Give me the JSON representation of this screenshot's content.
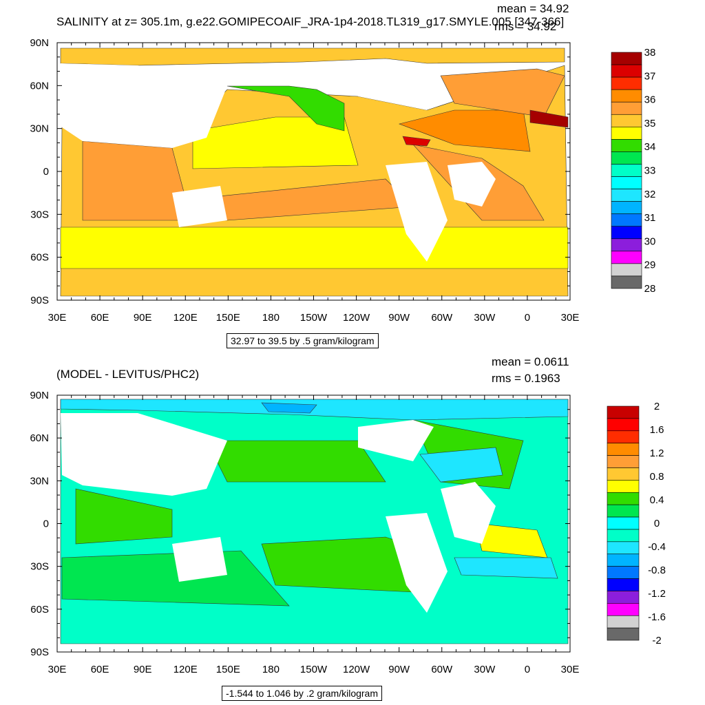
{
  "chart_data": [
    {
      "type": "heatmap",
      "title": "SALINITY at z= 305.1m, g.e22.GOMIPECOAIF_JRA-1p4-2018.TL319_g17.SMYLE.005 [347-366]",
      "stats": {
        "mean": "mean = 34.92",
        "rms": "rms = 34.92"
      },
      "x_ticks": [
        "30E",
        "60E",
        "90E",
        "120E",
        "150E",
        "180",
        "150W",
        "120W",
        "90W",
        "60W",
        "30W",
        "0",
        "30E"
      ],
      "y_ticks": [
        "90N",
        "60N",
        "30N",
        "0",
        "30S",
        "60S",
        "90S"
      ],
      "colorbar": {
        "labels": [
          "38",
          "37",
          "36",
          "35",
          "34",
          "33",
          "32",
          "31",
          "30",
          "29",
          "28"
        ],
        "colors": [
          "#a50000",
          "#dc0000",
          "#ff2d00",
          "#ff8c00",
          "#ff9e36",
          "#ffc832",
          "#ffff00",
          "#32dc00",
          "#00e650",
          "#00ffc8",
          "#00ffff",
          "#1ee6ff",
          "#00b4ff",
          "#0078ff",
          "#0000ff",
          "#8c1edc",
          "#ff00ff",
          "#d2d2d2",
          "#696969"
        ]
      },
      "range_label": "32.97 to 39.5 by .5 gram/kilogram"
    },
    {
      "type": "heatmap",
      "title": "(MODEL - LEVITUS/PHC2)",
      "stats": {
        "mean": "mean = 0.0611",
        "rms": "rms = 0.1963"
      },
      "x_ticks": [
        "30E",
        "60E",
        "90E",
        "120E",
        "150E",
        "180",
        "150W",
        "120W",
        "90W",
        "60W",
        "30W",
        "0",
        "30E"
      ],
      "y_ticks": [
        "90N",
        "60N",
        "30N",
        "0",
        "30S",
        "60S",
        "90S"
      ],
      "colorbar": {
        "labels": [
          "2",
          "1.6",
          "1.2",
          "0.8",
          "0.4",
          "0",
          "-0.4",
          "-0.8",
          "-1.2",
          "-1.6",
          "-2"
        ],
        "colors": [
          "#c80000",
          "#ff0000",
          "#ff2d00",
          "#ff8c00",
          "#ff9e36",
          "#ffc832",
          "#ffff00",
          "#32dc00",
          "#00e650",
          "#00ffff",
          "#00ffc8",
          "#1ee6ff",
          "#00b4ff",
          "#0078ff",
          "#0000ff",
          "#8c1edc",
          "#ff00ff",
          "#d2d2d2",
          "#696969"
        ]
      },
      "range_label": "-1.544 to 1.046 by .2 gram/kilogram"
    }
  ]
}
